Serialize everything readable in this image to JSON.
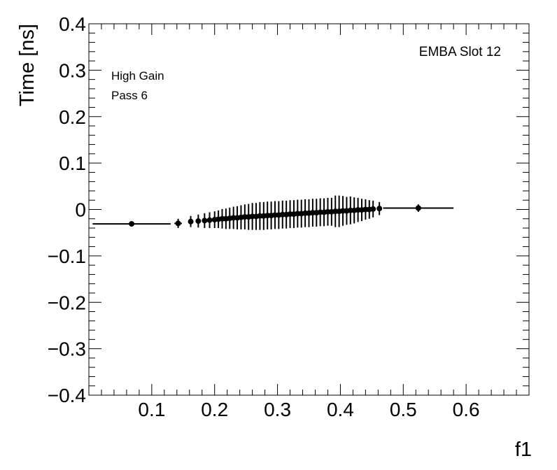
{
  "chart_data": {
    "type": "scatter",
    "title": "",
    "xlabel": "f1",
    "ylabel": "Time [ns]",
    "xlim": [
      0.0,
      0.7
    ],
    "ylim": [
      -0.4,
      0.4
    ],
    "grid": false,
    "x_ticks": [
      0.1,
      0.2,
      0.3,
      0.4,
      0.5,
      0.6
    ],
    "x_tick_labels": [
      "0.1",
      "0.2",
      "0.3",
      "0.4",
      "0.5",
      "0.6"
    ],
    "y_ticks": [
      -0.4,
      -0.3,
      -0.2,
      -0.1,
      0,
      0.1,
      0.2,
      0.3,
      0.4
    ],
    "y_tick_labels": [
      "−0.4",
      "−0.3",
      "−0.2",
      "−0.1",
      "0",
      "0.1",
      "0.2",
      "0.3",
      "0.4"
    ],
    "annotations": {
      "top_right": "EMBA Slot 12",
      "gain": "High Gain",
      "pass": "Pass 6"
    },
    "series": [
      {
        "x": [
          0.068,
          0.142,
          0.162,
          0.174,
          0.184,
          0.192,
          0.2,
          0.206,
          0.212,
          0.218,
          0.224,
          0.23,
          0.236,
          0.242,
          0.248,
          0.254,
          0.26,
          0.266,
          0.272,
          0.278,
          0.284,
          0.29,
          0.296,
          0.302,
          0.308,
          0.314,
          0.32,
          0.326,
          0.332,
          0.338,
          0.344,
          0.35,
          0.356,
          0.362,
          0.368,
          0.374,
          0.38,
          0.386,
          0.392,
          0.398,
          0.404,
          0.41,
          0.416,
          0.422,
          0.428,
          0.434,
          0.44,
          0.446,
          0.452,
          0.462,
          0.524
        ],
        "y": [
          -0.031,
          -0.03,
          -0.026,
          -0.025,
          -0.024,
          -0.023,
          -0.022,
          -0.021,
          -0.02,
          -0.02,
          -0.019,
          -0.018,
          -0.018,
          -0.017,
          -0.016,
          -0.016,
          -0.015,
          -0.015,
          -0.014,
          -0.014,
          -0.013,
          -0.013,
          -0.012,
          -0.012,
          -0.011,
          -0.011,
          -0.01,
          -0.01,
          -0.009,
          -0.009,
          -0.008,
          -0.008,
          -0.007,
          -0.007,
          -0.006,
          -0.006,
          -0.005,
          -0.005,
          -0.004,
          -0.004,
          -0.003,
          -0.003,
          -0.002,
          -0.002,
          -0.001,
          -0.001,
          0.0,
          0.0,
          0.001,
          0.002,
          0.003
        ],
        "yerr": [
          0.004,
          0.01,
          0.012,
          0.014,
          0.016,
          0.017,
          0.018,
          0.019,
          0.021,
          0.022,
          0.023,
          0.024,
          0.025,
          0.026,
          0.027,
          0.028,
          0.029,
          0.029,
          0.03,
          0.03,
          0.03,
          0.03,
          0.03,
          0.03,
          0.03,
          0.03,
          0.03,
          0.03,
          0.03,
          0.03,
          0.03,
          0.03,
          0.03,
          0.03,
          0.03,
          0.03,
          0.03,
          0.03,
          0.034,
          0.034,
          0.032,
          0.03,
          0.03,
          0.028,
          0.026,
          0.024,
          0.022,
          0.02,
          0.018,
          0.014,
          0.008
        ],
        "xerr": [
          0.062,
          0.006,
          0.004,
          0.003,
          0.003,
          0.003,
          0.003,
          0.003,
          0.003,
          0.003,
          0.003,
          0.003,
          0.003,
          0.003,
          0.003,
          0.003,
          0.003,
          0.003,
          0.003,
          0.003,
          0.003,
          0.003,
          0.003,
          0.003,
          0.003,
          0.003,
          0.003,
          0.003,
          0.003,
          0.003,
          0.003,
          0.003,
          0.003,
          0.003,
          0.003,
          0.003,
          0.003,
          0.003,
          0.003,
          0.003,
          0.003,
          0.003,
          0.003,
          0.003,
          0.003,
          0.003,
          0.003,
          0.003,
          0.003,
          0.004,
          0.056
        ]
      }
    ]
  }
}
